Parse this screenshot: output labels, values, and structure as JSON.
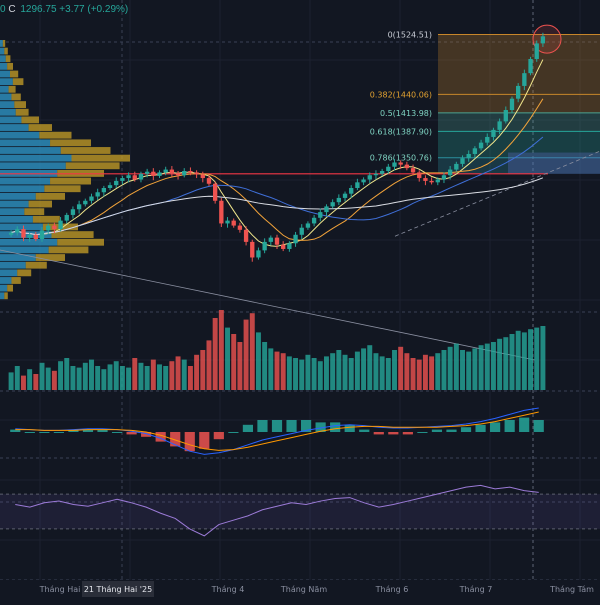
{
  "header": {
    "price_open_fragment": "0",
    "close_label": "C",
    "close_value": "1296.75",
    "change": "+3.77",
    "change_pct": "(+0.29%)"
  },
  "colors": {
    "background": "#121722",
    "up": "#26a69a",
    "down": "#ef5350",
    "fib_zone": "#c7862a",
    "resistance_line": "#f23645",
    "rsi_band": "#7e57c2"
  },
  "chart_data": [
    {
      "type": "candlestick",
      "description_of_marks": "price candles with fibonacci retracement levels and volume profile",
      "x_axis_ticks": [
        "Tháng Hai",
        "21 Tháng Hai '25",
        "Tháng 4",
        "Tháng Năm",
        "Tháng 6",
        "Tháng 7",
        "Tháng Tám"
      ],
      "highlighted_tick": "21 Tháng Hai '25",
      "fib_levels": [
        {
          "ratio": "0",
          "value": 1524.51,
          "label": "0(1524.51)"
        },
        {
          "ratio": "0.382",
          "value": 1440.06,
          "label": "0.382(1440.06)"
        },
        {
          "ratio": "0.5",
          "value": 1413.98,
          "label": "0.5(1413.98)"
        },
        {
          "ratio": "0.618",
          "value": 1387.9,
          "label": "0.618(1387.90)"
        },
        {
          "ratio": "0.786",
          "value": 1350.76,
          "label": "0.786(1350.76)"
        }
      ],
      "resistance_level": 1328,
      "y_range": [
        1150,
        1545
      ],
      "closes": [
        1245,
        1250,
        1238,
        1242,
        1236,
        1248,
        1255,
        1250,
        1262,
        1270,
        1278,
        1285,
        1290,
        1296,
        1302,
        1308,
        1312,
        1318,
        1322,
        1326,
        1320,
        1328,
        1331,
        1325,
        1330,
        1334,
        1329,
        1326,
        1332,
        1330,
        1327,
        1322,
        1314,
        1290,
        1258,
        1262,
        1255,
        1249,
        1232,
        1210,
        1220,
        1232,
        1238,
        1228,
        1222,
        1230,
        1242,
        1252,
        1258,
        1266,
        1274,
        1282,
        1288,
        1294,
        1300,
        1308,
        1316,
        1320,
        1326,
        1328,
        1332,
        1338,
        1344,
        1341,
        1336,
        1330,
        1322,
        1318,
        1316,
        1320,
        1326,
        1334,
        1342,
        1350,
        1356,
        1364,
        1372,
        1380,
        1390,
        1402,
        1418,
        1434,
        1452,
        1470,
        1490,
        1512,
        1522
      ],
      "volume_relative": [
        22,
        30,
        18,
        26,
        20,
        34,
        28,
        24,
        36,
        40,
        30,
        28,
        34,
        38,
        30,
        26,
        32,
        36,
        30,
        28,
        40,
        34,
        30,
        38,
        32,
        30,
        36,
        42,
        38,
        30,
        44,
        50,
        62,
        90,
        100,
        78,
        70,
        60,
        88,
        96,
        72,
        60,
        52,
        48,
        46,
        42,
        40,
        38,
        44,
        40,
        36,
        42,
        46,
        50,
        44,
        40,
        48,
        52,
        56,
        46,
        42,
        40,
        50,
        54,
        46,
        40,
        38,
        44,
        42,
        46,
        50,
        54,
        58,
        50,
        48,
        52,
        56,
        58,
        60,
        64,
        66,
        70,
        74,
        72,
        76,
        78,
        80
      ],
      "volume_profile_relative": [
        4,
        6,
        8,
        10,
        14,
        18,
        12,
        16,
        20,
        22,
        30,
        40,
        55,
        70,
        85,
        100,
        92,
        80,
        70,
        62,
        50,
        40,
        34,
        46,
        60,
        72,
        80,
        68,
        50,
        36,
        24,
        16,
        10,
        6
      ]
    },
    {
      "type": "macd",
      "macd": [
        4,
        3,
        2,
        2,
        3,
        4,
        4,
        3,
        1,
        -2,
        -8,
        -16,
        -24,
        -28,
        -26,
        -22,
        -16,
        -10,
        -6,
        -2,
        2,
        5,
        8,
        9,
        8,
        6,
        5,
        5,
        6,
        7,
        8,
        10,
        13,
        17,
        22,
        27,
        30
      ],
      "signal": [
        3,
        3,
        2,
        2,
        2,
        3,
        3,
        3,
        2,
        0,
        -4,
        -10,
        -16,
        -21,
        -23,
        -22,
        -19,
        -15,
        -11,
        -7,
        -3,
        1,
        4,
        6,
        7,
        7,
        6,
        6,
        6,
        6,
        7,
        8,
        10,
        13,
        17,
        21,
        25
      ]
    },
    {
      "type": "rsi",
      "values": [
        58,
        55,
        60,
        62,
        58,
        56,
        60,
        64,
        60,
        55,
        48,
        42,
        30,
        22,
        35,
        40,
        45,
        52,
        56,
        60,
        58,
        62,
        65,
        66,
        60,
        55,
        58,
        62,
        66,
        70,
        74,
        78,
        80,
        76,
        78,
        74,
        72
      ]
    }
  ]
}
